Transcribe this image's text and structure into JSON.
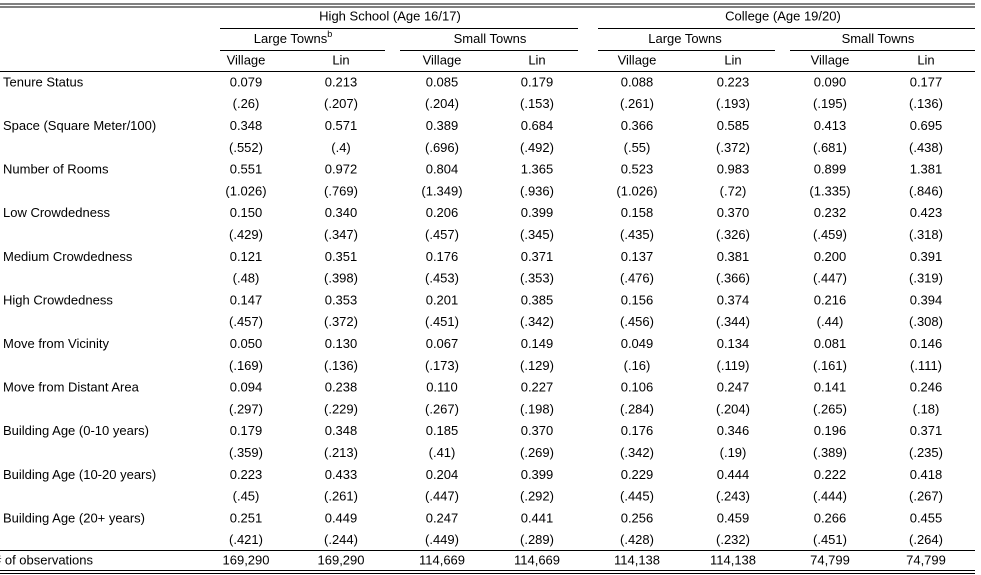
{
  "table": {
    "groups": [
      {
        "label": "High School (Age 16/17)",
        "subgroups": [
          {
            "label": "Large Towns",
            "note": "b"
          },
          {
            "label": "Small Towns"
          }
        ]
      },
      {
        "label": "College (Age 19/20)",
        "subgroups": [
          {
            "label": "Large Towns"
          },
          {
            "label": "Small Towns"
          }
        ]
      }
    ],
    "columns": [
      "Village",
      "Lin",
      "Village",
      "Lin",
      "Village",
      "Lin",
      "Village",
      "Lin"
    ],
    "rows": [
      {
        "label": "Tenure Status",
        "values": [
          "0.079",
          "0.213",
          "0.085",
          "0.179",
          "0.088",
          "0.223",
          "0.090",
          "0.177"
        ],
        "se": [
          "(.26)",
          "(.207)",
          "(.204)",
          "(.153)",
          "(.261)",
          "(.193)",
          "(.195)",
          "(.136)"
        ]
      },
      {
        "label": "Space (Square Meter/100)",
        "values": [
          "0.348",
          "0.571",
          "0.389",
          "0.684",
          "0.366",
          "0.585",
          "0.413",
          "0.695"
        ],
        "se": [
          "(.552)",
          "(.4)",
          "(.696)",
          "(.492)",
          "(.55)",
          "(.372)",
          "(.681)",
          "(.438)"
        ]
      },
      {
        "label": "Number of Rooms",
        "values": [
          "0.551",
          "0.972",
          "0.804",
          "1.365",
          "0.523",
          "0.983",
          "0.899",
          "1.381"
        ],
        "se": [
          "(1.026)",
          "(.769)",
          "(1.349)",
          "(.936)",
          "(1.026)",
          "(.72)",
          "(1.335)",
          "(.846)"
        ]
      },
      {
        "label": "Low Crowdedness",
        "values": [
          "0.150",
          "0.340",
          "0.206",
          "0.399",
          "0.158",
          "0.370",
          "0.232",
          "0.423"
        ],
        "se": [
          "(.429)",
          "(.347)",
          "(.457)",
          "(.345)",
          "(.435)",
          "(.326)",
          "(.459)",
          "(.318)"
        ]
      },
      {
        "label": "Medium Crowdedness",
        "values": [
          "0.121",
          "0.351",
          "0.176",
          "0.371",
          "0.137",
          "0.381",
          "0.200",
          "0.391"
        ],
        "se": [
          "(.48)",
          "(.398)",
          "(.453)",
          "(.353)",
          "(.476)",
          "(.366)",
          "(.447)",
          "(.319)"
        ]
      },
      {
        "label": "High Crowdedness",
        "values": [
          "0.147",
          "0.353",
          "0.201",
          "0.385",
          "0.156",
          "0.374",
          "0.216",
          "0.394"
        ],
        "se": [
          "(.457)",
          "(.372)",
          "(.451)",
          "(.342)",
          "(.456)",
          "(.344)",
          "(.44)",
          "(.308)"
        ]
      },
      {
        "label": "Move from Vicinity",
        "values": [
          "0.050",
          "0.130",
          "0.067",
          "0.149",
          "0.049",
          "0.134",
          "0.081",
          "0.146"
        ],
        "se": [
          "(.169)",
          "(.136)",
          "(.173)",
          "(.129)",
          "(.16)",
          "(.119)",
          "(.161)",
          "(.111)"
        ]
      },
      {
        "label": "Move from Distant Area",
        "values": [
          "0.094",
          "0.238",
          "0.110",
          "0.227",
          "0.106",
          "0.247",
          "0.141",
          "0.246"
        ],
        "se": [
          "(.297)",
          "(.229)",
          "(.267)",
          "(.198)",
          "(.284)",
          "(.204)",
          "(.265)",
          "(.18)"
        ]
      },
      {
        "label": "Building Age (0-10 years)",
        "values": [
          "0.179",
          "0.348",
          "0.185",
          "0.370",
          "0.176",
          "0.346",
          "0.196",
          "0.371"
        ],
        "se": [
          "(.359)",
          "(.213)",
          "(.41)",
          "(.269)",
          "(.342)",
          "(.19)",
          "(.389)",
          "(.235)"
        ]
      },
      {
        "label": "Building Age (10-20 years)",
        "values": [
          "0.223",
          "0.433",
          "0.204",
          "0.399",
          "0.229",
          "0.444",
          "0.222",
          "0.418"
        ],
        "se": [
          "(.45)",
          "(.261)",
          "(.447)",
          "(.292)",
          "(.445)",
          "(.243)",
          "(.444)",
          "(.267)"
        ]
      },
      {
        "label": "Building Age (20+ years)",
        "values": [
          "0.251",
          "0.449",
          "0.247",
          "0.441",
          "0.256",
          "0.459",
          "0.266",
          "0.455"
        ],
        "se": [
          "(.421)",
          "(.244)",
          "(.449)",
          "(.289)",
          "(.428)",
          "(.232)",
          "(.451)",
          "(.264)"
        ]
      }
    ],
    "observations": {
      "label": "# of observations",
      "values": [
        "169,290",
        "169,290",
        "114,669",
        "114,669",
        "114,138",
        "114,138",
        "74,799",
        "74,799"
      ]
    }
  }
}
